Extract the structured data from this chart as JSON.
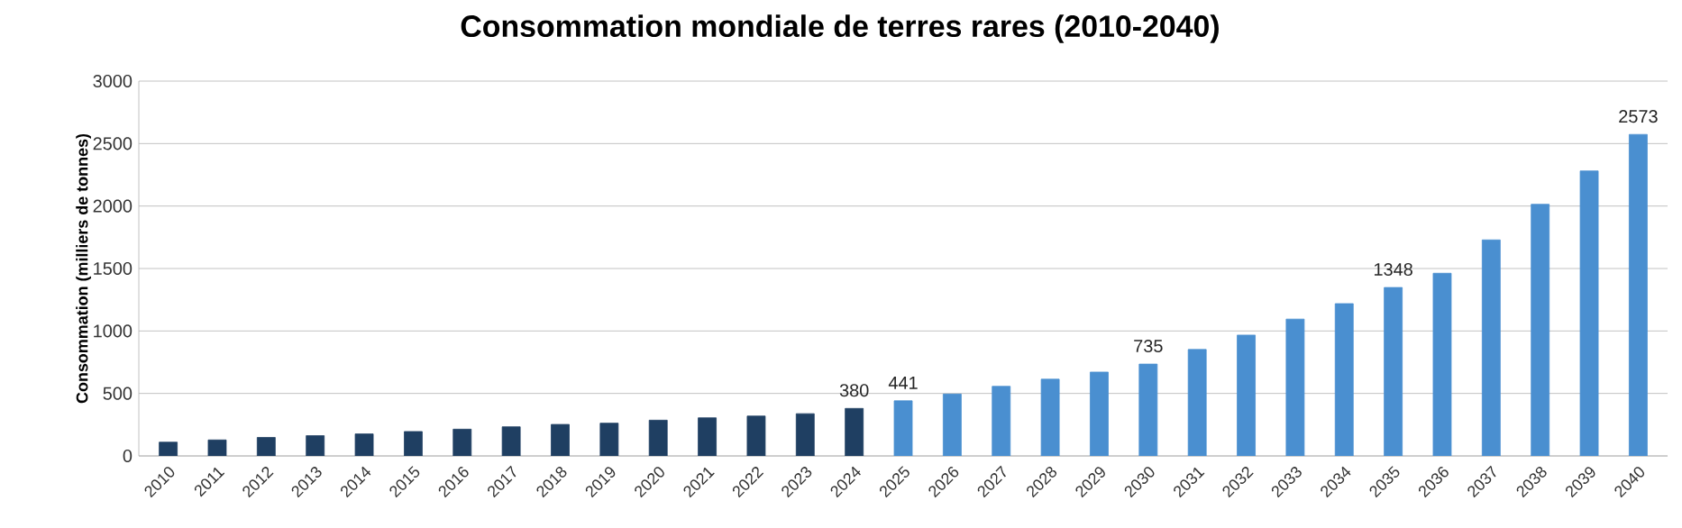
{
  "chart_data": {
    "type": "bar",
    "title": "Consommation mondiale de terres rares (2010-2040)",
    "ylabel": "Consommation  (milliers de tonnes)",
    "categories": [
      "2010",
      "2011",
      "2012",
      "2013",
      "2014",
      "2015",
      "2016",
      "2017",
      "2018",
      "2019",
      "2020",
      "2021",
      "2022",
      "2023",
      "2024",
      "2025",
      "2026",
      "2027",
      "2028",
      "2029",
      "2030",
      "2031",
      "2032",
      "2033",
      "2034",
      "2035",
      "2036",
      "2037",
      "2038",
      "2039",
      "2040"
    ],
    "values": [
      110,
      128,
      148,
      162,
      176,
      195,
      214,
      233,
      252,
      262,
      286,
      305,
      319,
      338,
      380,
      441,
      495,
      557,
      614,
      671,
      735,
      852,
      967,
      1095,
      1219,
      1348,
      1462,
      1729,
      2014,
      2281,
      2573
    ],
    "colors": [
      "#1f3f62",
      "#1f3f62",
      "#1f3f62",
      "#1f3f62",
      "#1f3f62",
      "#1f3f62",
      "#1f3f62",
      "#1f3f62",
      "#1f3f62",
      "#1f3f62",
      "#1f3f62",
      "#1f3f62",
      "#1f3f62",
      "#1f3f62",
      "#1f3f62",
      "#4a8fd0",
      "#4a8fd0",
      "#4a8fd0",
      "#4a8fd0",
      "#4a8fd0",
      "#4a8fd0",
      "#4a8fd0",
      "#4a8fd0",
      "#4a8fd0",
      "#4a8fd0",
      "#4a8fd0",
      "#4a8fd0",
      "#4a8fd0",
      "#4a8fd0",
      "#4a8fd0",
      "#4a8fd0"
    ],
    "value_labels": [
      null,
      null,
      null,
      null,
      null,
      null,
      null,
      null,
      null,
      null,
      null,
      null,
      null,
      null,
      "380",
      "441",
      null,
      null,
      null,
      null,
      "735",
      null,
      null,
      null,
      null,
      "1348",
      null,
      null,
      null,
      null,
      "2573"
    ],
    "ylim": [
      0,
      3000
    ],
    "yticks": [
      0,
      500,
      1000,
      1500,
      2000,
      2500,
      3000
    ],
    "grid": "y"
  }
}
